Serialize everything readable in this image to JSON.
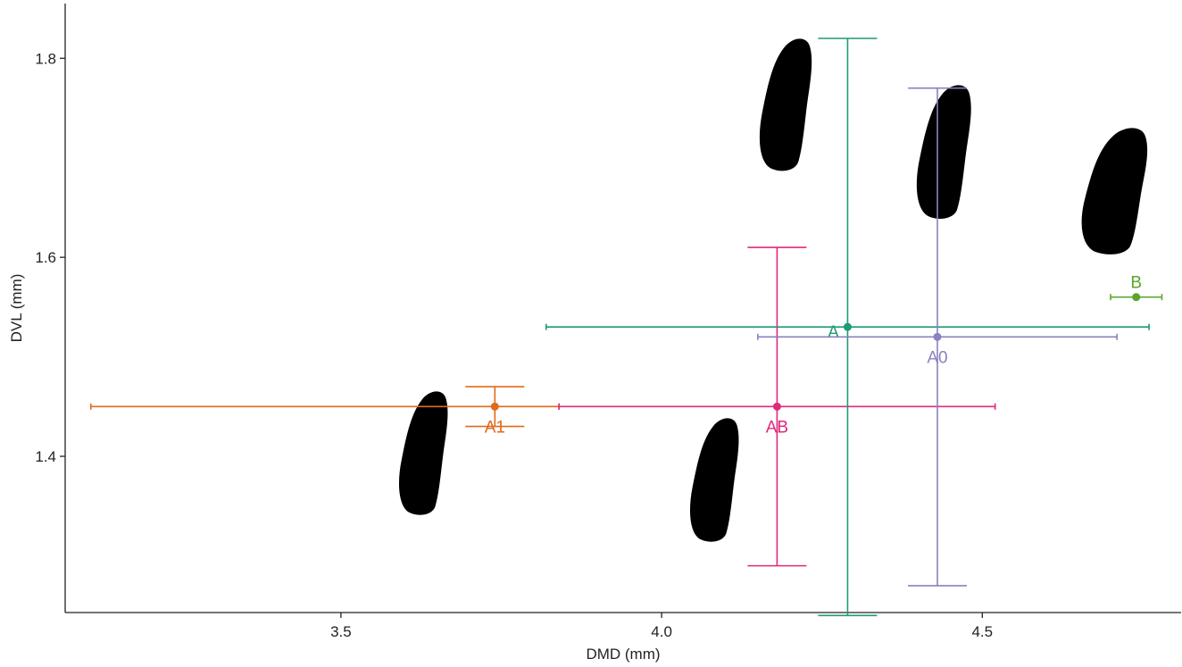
{
  "chart_data": {
    "type": "scatter",
    "title": "",
    "xlabel": "DMD (mm)",
    "ylabel": "DVL (mm)",
    "xlim": [
      3.07,
      4.81
    ],
    "ylim": [
      1.243,
      1.855
    ],
    "xticks": [
      3.5,
      4.0,
      4.5
    ],
    "xtick_labels": [
      "3.5",
      "4.0",
      "4.5"
    ],
    "yticks": [
      1.4,
      1.6,
      1.8
    ],
    "ytick_labels": [
      "1.4",
      "1.6",
      "1.8"
    ],
    "grid": false,
    "legend": "none",
    "series": [
      {
        "name": "A1",
        "color": "#E06A1B",
        "x": 3.74,
        "y": 1.45,
        "x_err": [
          3.11,
          3.84
        ],
        "y_err": [
          1.43,
          1.47
        ]
      },
      {
        "name": "AB",
        "color": "#E0287A",
        "x": 4.18,
        "y": 1.45,
        "x_err": [
          3.84,
          4.52
        ],
        "y_err": [
          1.29,
          1.61
        ]
      },
      {
        "name": "A",
        "color": "#1E9A76",
        "x": 4.29,
        "y": 1.53,
        "x_err": [
          3.82,
          4.76
        ],
        "y_err": [
          1.24,
          1.82
        ]
      },
      {
        "name": "A0",
        "color": "#8B80C0",
        "x": 4.43,
        "y": 1.52,
        "x_err": [
          4.15,
          4.71
        ],
        "y_err": [
          1.27,
          1.77
        ]
      },
      {
        "name": "B",
        "color": "#5AA52B",
        "x": 4.74,
        "y": 1.56,
        "x_err": [
          4.7,
          4.78
        ],
        "y_err": [
          1.56,
          1.56
        ]
      }
    ],
    "label_placement": {
      "A1": "below",
      "AB": "below",
      "A": "below-left",
      "A0": "below",
      "B": "above"
    },
    "annotations": {
      "tooth_outline_icons": [
        {
          "near": "A1",
          "icon": "premolar-outline-icon"
        },
        {
          "near": "AB",
          "icon": "premolar-outline-icon"
        },
        {
          "near": "A",
          "icon": "premolar-outline-icon"
        },
        {
          "near": "A0",
          "icon": "premolar-outline-icon"
        },
        {
          "near": "B",
          "icon": "premolar-outline-icon"
        }
      ]
    }
  }
}
